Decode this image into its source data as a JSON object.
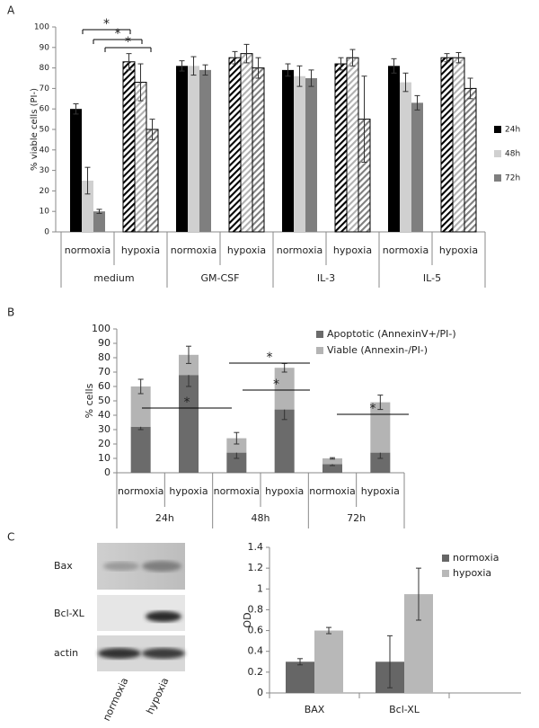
{
  "chart_data": [
    {
      "type": "bar",
      "label": "A",
      "y_label": "% viable cells (PI-)",
      "categories": [
        "normoxia",
        "hypoxia",
        "normoxia",
        "hypoxia",
        "normoxia",
        "hypoxia",
        "normoxia",
        "hypoxia"
      ],
      "groups": [
        "medium",
        "GM-CSF",
        "IL-3",
        "IL-5"
      ],
      "hatched": [
        false,
        true,
        false,
        true,
        false,
        true,
        false,
        true
      ],
      "series": [
        {
          "name": "24h",
          "color": "#000000",
          "values": [
            60,
            83,
            81,
            85,
            79,
            82,
            81,
            85
          ],
          "errors": [
            2.5,
            4,
            2.5,
            3,
            3,
            3,
            3.5,
            2
          ]
        },
        {
          "name": "48h",
          "color": "#d0d0d0",
          "values": [
            25,
            73,
            81,
            87,
            76,
            85,
            73,
            85
          ],
          "errors": [
            6.5,
            9,
            4.5,
            4.5,
            5,
            4,
            4.5,
            2.5
          ]
        },
        {
          "name": "72h",
          "color": "#7f7f7f",
          "values": [
            10,
            50,
            79,
            80,
            75,
            55,
            63,
            70
          ],
          "errors": [
            1,
            5,
            2.5,
            5,
            4,
            21,
            3.5,
            5
          ]
        }
      ],
      "ylim": [
        0,
        100
      ],
      "yticks": [
        0,
        10,
        20,
        30,
        40,
        50,
        60,
        70,
        80,
        90,
        100
      ],
      "significance": [
        "*",
        "*",
        "*"
      ]
    },
    {
      "type": "bar",
      "stacked": true,
      "label": "B",
      "y_label": "% cells",
      "categories": [
        "normoxia",
        "hypoxia",
        "normoxia",
        "hypoxia",
        "normoxia",
        "hypoxia"
      ],
      "groups": [
        "24h",
        "48h",
        "72h"
      ],
      "series": [
        {
          "name": "Apoptotic (AnnexinV+/PI-)",
          "color": "#6b6b6b",
          "values": [
            32,
            68,
            14,
            44,
            6,
            14
          ],
          "errors": [
            2,
            8,
            4,
            7,
            1,
            4
          ]
        },
        {
          "name": "Viable (Annexin-/PI-)",
          "color": "#b4b4b4",
          "values": [
            28,
            14,
            10,
            29,
            4,
            35
          ],
          "errors": [
            5,
            6,
            4,
            3,
            0.5,
            5
          ]
        }
      ],
      "ylim": [
        0,
        100
      ],
      "yticks": [
        0,
        10,
        20,
        30,
        40,
        50,
        60,
        70,
        80,
        90,
        100
      ],
      "significance": [
        "*",
        "*",
        "*",
        "*"
      ]
    },
    {
      "type": "bar",
      "y_label": "OD",
      "categories": [
        "BAX",
        "Bcl-XL"
      ],
      "series": [
        {
          "name": "normoxia",
          "color": "#666666",
          "values": [
            0.3,
            0.3
          ],
          "errors": [
            0.03,
            0.25
          ]
        },
        {
          "name": "hypoxia",
          "color": "#b8b8b8",
          "values": [
            0.6,
            0.95
          ],
          "errors": [
            0.03,
            0.25
          ]
        }
      ],
      "ylim": [
        0,
        1.4
      ],
      "yticks": [
        0,
        0.2,
        0.4,
        0.6,
        0.8,
        1,
        1.2,
        1.4
      ]
    }
  ],
  "blot": {
    "label": "C",
    "rows": [
      "Bax",
      "Bcl-XL",
      "actin"
    ],
    "lanes": [
      "normoxia",
      "hypoxia"
    ]
  }
}
